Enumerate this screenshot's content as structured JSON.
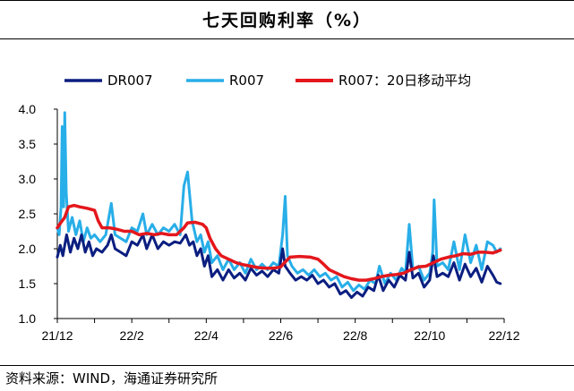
{
  "title": "七天回购利率（%）",
  "source": "资料来源：WIND，海通证券研究所",
  "chart_data": {
    "type": "line",
    "title": "七天回购利率（%）",
    "ylim": [
      1.0,
      4.0
    ],
    "yticks": [
      "1.0",
      "1.5",
      "2.0",
      "2.5",
      "3.0",
      "3.5",
      "4.0"
    ],
    "xlim": [
      0,
      12
    ],
    "xticks": [
      {
        "v": 0,
        "label": "21/12"
      },
      {
        "v": 2,
        "label": "22/2"
      },
      {
        "v": 4,
        "label": "22/4"
      },
      {
        "v": 6,
        "label": "22/6"
      },
      {
        "v": 8,
        "label": "22/8"
      },
      {
        "v": 10,
        "label": "22/10"
      },
      {
        "v": 12,
        "label": "22/12"
      }
    ],
    "series": [
      {
        "name": "DR007",
        "color": "#0b1e80",
        "width": 3,
        "points": [
          [
            0,
            1.88
          ],
          [
            0.08,
            2.05
          ],
          [
            0.15,
            1.9
          ],
          [
            0.25,
            2.2
          ],
          [
            0.35,
            1.95
          ],
          [
            0.45,
            2.15
          ],
          [
            0.55,
            2.0
          ],
          [
            0.65,
            2.2
          ],
          [
            0.75,
            1.95
          ],
          [
            0.85,
            2.1
          ],
          [
            0.95,
            1.9
          ],
          [
            1.05,
            2.0
          ],
          [
            1.2,
            1.95
          ],
          [
            1.35,
            2.05
          ],
          [
            1.45,
            2.2
          ],
          [
            1.55,
            2.0
          ],
          [
            1.7,
            1.95
          ],
          [
            1.85,
            1.9
          ],
          [
            2.0,
            2.1
          ],
          [
            2.15,
            2.05
          ],
          [
            2.3,
            2.2
          ],
          [
            2.4,
            2.0
          ],
          [
            2.55,
            2.2
          ],
          [
            2.7,
            2.0
          ],
          [
            2.85,
            2.1
          ],
          [
            3.0,
            2.05
          ],
          [
            3.15,
            2.1
          ],
          [
            3.3,
            2.08
          ],
          [
            3.45,
            2.2
          ],
          [
            3.55,
            2.05
          ],
          [
            3.65,
            2.1
          ],
          [
            3.75,
            1.9
          ],
          [
            3.85,
            2.0
          ],
          [
            3.95,
            1.75
          ],
          [
            4.05,
            1.9
          ],
          [
            4.15,
            1.6
          ],
          [
            4.3,
            1.7
          ],
          [
            4.45,
            1.55
          ],
          [
            4.6,
            1.7
          ],
          [
            4.75,
            1.58
          ],
          [
            4.9,
            1.65
          ],
          [
            5.05,
            1.55
          ],
          [
            5.2,
            1.72
          ],
          [
            5.35,
            1.62
          ],
          [
            5.5,
            1.68
          ],
          [
            5.65,
            1.6
          ],
          [
            5.8,
            1.7
          ],
          [
            5.95,
            1.65
          ],
          [
            6.05,
            2.0
          ],
          [
            6.12,
            1.75
          ],
          [
            6.25,
            1.65
          ],
          [
            6.4,
            1.55
          ],
          [
            6.55,
            1.6
          ],
          [
            6.7,
            1.55
          ],
          [
            6.85,
            1.62
          ],
          [
            7.0,
            1.5
          ],
          [
            7.15,
            1.55
          ],
          [
            7.3,
            1.45
          ],
          [
            7.45,
            1.5
          ],
          [
            7.6,
            1.35
          ],
          [
            7.75,
            1.4
          ],
          [
            7.9,
            1.3
          ],
          [
            8.05,
            1.38
          ],
          [
            8.2,
            1.32
          ],
          [
            8.35,
            1.45
          ],
          [
            8.5,
            1.4
          ],
          [
            8.62,
            1.62
          ],
          [
            8.75,
            1.4
          ],
          [
            8.9,
            1.55
          ],
          [
            9.05,
            1.45
          ],
          [
            9.2,
            1.62
          ],
          [
            9.35,
            1.55
          ],
          [
            9.45,
            1.95
          ],
          [
            9.55,
            1.58
          ],
          [
            9.7,
            1.65
          ],
          [
            9.85,
            1.45
          ],
          [
            10.0,
            1.55
          ],
          [
            10.1,
            1.9
          ],
          [
            10.2,
            1.6
          ],
          [
            10.35,
            1.65
          ],
          [
            10.5,
            1.6
          ],
          [
            10.65,
            1.8
          ],
          [
            10.8,
            1.55
          ],
          [
            10.95,
            1.78
          ],
          [
            11.1,
            1.6
          ],
          [
            11.25,
            1.72
          ],
          [
            11.4,
            1.52
          ],
          [
            11.55,
            1.75
          ],
          [
            11.7,
            1.62
          ],
          [
            11.8,
            1.52
          ],
          [
            11.9,
            1.5
          ]
        ]
      },
      {
        "name": "R007",
        "color": "#28aee8",
        "width": 3,
        "points": [
          [
            0,
            2.3
          ],
          [
            0.05,
            2.2
          ],
          [
            0.1,
            2.6
          ],
          [
            0.13,
            3.75
          ],
          [
            0.17,
            2.6
          ],
          [
            0.2,
            3.95
          ],
          [
            0.24,
            2.8
          ],
          [
            0.3,
            2.25
          ],
          [
            0.4,
            2.45
          ],
          [
            0.5,
            2.2
          ],
          [
            0.6,
            2.4
          ],
          [
            0.7,
            2.1
          ],
          [
            0.8,
            2.3
          ],
          [
            0.9,
            2.15
          ],
          [
            1.0,
            2.2
          ],
          [
            1.15,
            2.1
          ],
          [
            1.3,
            2.2
          ],
          [
            1.45,
            2.65
          ],
          [
            1.55,
            2.2
          ],
          [
            1.7,
            2.15
          ],
          [
            1.85,
            2.1
          ],
          [
            2.0,
            2.3
          ],
          [
            2.15,
            2.25
          ],
          [
            2.3,
            2.5
          ],
          [
            2.4,
            2.2
          ],
          [
            2.55,
            2.35
          ],
          [
            2.7,
            2.2
          ],
          [
            2.85,
            2.3
          ],
          [
            3.0,
            2.25
          ],
          [
            3.15,
            2.35
          ],
          [
            3.3,
            2.2
          ],
          [
            3.4,
            2.9
          ],
          [
            3.5,
            3.1
          ],
          [
            3.55,
            2.8
          ],
          [
            3.62,
            2.4
          ],
          [
            3.75,
            2.1
          ],
          [
            3.85,
            2.2
          ],
          [
            3.95,
            1.95
          ],
          [
            4.05,
            2.1
          ],
          [
            4.15,
            1.8
          ],
          [
            4.3,
            1.9
          ],
          [
            4.45,
            1.7
          ],
          [
            4.6,
            1.85
          ],
          [
            4.75,
            1.7
          ],
          [
            4.9,
            1.8
          ],
          [
            5.05,
            1.65
          ],
          [
            5.2,
            1.85
          ],
          [
            5.35,
            1.7
          ],
          [
            5.5,
            1.78
          ],
          [
            5.65,
            1.7
          ],
          [
            5.8,
            1.8
          ],
          [
            5.95,
            1.75
          ],
          [
            6.05,
            2.2
          ],
          [
            6.12,
            2.75
          ],
          [
            6.18,
            1.9
          ],
          [
            6.3,
            1.75
          ],
          [
            6.45,
            1.65
          ],
          [
            6.6,
            1.7
          ],
          [
            6.75,
            1.62
          ],
          [
            6.9,
            1.7
          ],
          [
            7.05,
            1.6
          ],
          [
            7.2,
            1.65
          ],
          [
            7.35,
            1.55
          ],
          [
            7.5,
            1.6
          ],
          [
            7.65,
            1.45
          ],
          [
            7.8,
            1.52
          ],
          [
            7.95,
            1.4
          ],
          [
            8.1,
            1.48
          ],
          [
            8.25,
            1.42
          ],
          [
            8.4,
            1.55
          ],
          [
            8.55,
            1.5
          ],
          [
            8.65,
            1.75
          ],
          [
            8.8,
            1.5
          ],
          [
            8.95,
            1.65
          ],
          [
            9.1,
            1.55
          ],
          [
            9.25,
            1.72
          ],
          [
            9.35,
            1.65
          ],
          [
            9.45,
            2.35
          ],
          [
            9.55,
            1.7
          ],
          [
            9.7,
            1.75
          ],
          [
            9.85,
            1.55
          ],
          [
            10.0,
            1.65
          ],
          [
            10.08,
            1.95
          ],
          [
            10.12,
            2.7
          ],
          [
            10.2,
            1.75
          ],
          [
            10.35,
            1.8
          ],
          [
            10.5,
            1.7
          ],
          [
            10.65,
            2.1
          ],
          [
            10.8,
            1.7
          ],
          [
            10.95,
            2.2
          ],
          [
            11.1,
            1.8
          ],
          [
            11.25,
            2.05
          ],
          [
            11.4,
            1.7
          ],
          [
            11.55,
            2.1
          ],
          [
            11.7,
            2.05
          ],
          [
            11.8,
            1.95
          ],
          [
            11.9,
            2.0
          ]
        ]
      },
      {
        "name": "R007：20日移动平均",
        "color": "#e4171c",
        "width": 3.5,
        "points": [
          [
            0,
            2.3
          ],
          [
            0.1,
            2.38
          ],
          [
            0.2,
            2.45
          ],
          [
            0.3,
            2.6
          ],
          [
            0.45,
            2.62
          ],
          [
            0.6,
            2.6
          ],
          [
            0.8,
            2.58
          ],
          [
            1.0,
            2.55
          ],
          [
            1.1,
            2.4
          ],
          [
            1.2,
            2.3
          ],
          [
            1.4,
            2.3
          ],
          [
            1.6,
            2.28
          ],
          [
            1.8,
            2.25
          ],
          [
            2.0,
            2.25
          ],
          [
            2.2,
            2.2
          ],
          [
            2.4,
            2.22
          ],
          [
            2.6,
            2.2
          ],
          [
            2.8,
            2.22
          ],
          [
            3.0,
            2.2
          ],
          [
            3.2,
            2.2
          ],
          [
            3.4,
            2.3
          ],
          [
            3.5,
            2.37
          ],
          [
            3.7,
            2.38
          ],
          [
            3.9,
            2.35
          ],
          [
            4.0,
            2.3
          ],
          [
            4.1,
            2.15
          ],
          [
            4.25,
            2.0
          ],
          [
            4.4,
            1.9
          ],
          [
            4.6,
            1.85
          ],
          [
            4.8,
            1.8
          ],
          [
            5.0,
            1.77
          ],
          [
            5.2,
            1.75
          ],
          [
            5.4,
            1.73
          ],
          [
            5.6,
            1.72
          ],
          [
            5.8,
            1.72
          ],
          [
            6.0,
            1.74
          ],
          [
            6.1,
            1.8
          ],
          [
            6.25,
            1.88
          ],
          [
            6.5,
            1.89
          ],
          [
            6.8,
            1.88
          ],
          [
            7.0,
            1.85
          ],
          [
            7.15,
            1.78
          ],
          [
            7.3,
            1.7
          ],
          [
            7.5,
            1.65
          ],
          [
            7.7,
            1.6
          ],
          [
            7.9,
            1.57
          ],
          [
            8.1,
            1.55
          ],
          [
            8.3,
            1.55
          ],
          [
            8.5,
            1.57
          ],
          [
            8.7,
            1.6
          ],
          [
            8.9,
            1.62
          ],
          [
            9.1,
            1.63
          ],
          [
            9.3,
            1.65
          ],
          [
            9.5,
            1.7
          ],
          [
            9.7,
            1.74
          ],
          [
            9.9,
            1.75
          ],
          [
            10.1,
            1.8
          ],
          [
            10.3,
            1.85
          ],
          [
            10.5,
            1.88
          ],
          [
            10.7,
            1.9
          ],
          [
            10.9,
            1.93
          ],
          [
            11.1,
            1.92
          ],
          [
            11.3,
            1.95
          ],
          [
            11.5,
            1.95
          ],
          [
            11.7,
            1.94
          ],
          [
            11.9,
            1.98
          ]
        ]
      }
    ]
  }
}
